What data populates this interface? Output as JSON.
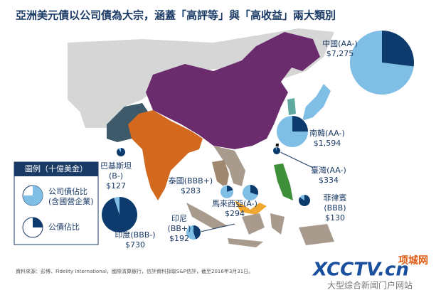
{
  "title": "亞洲美元債以公司債為大宗，涵蓋「高評等」與「高收益」兩大類別",
  "regions": [
    {
      "lines": [
        "中國(AA-)",
        "$7,275"
      ],
      "corp_share": 73
    },
    {
      "lines": [
        "南韓(AA-)",
        "$1,594"
      ],
      "corp_share": 75
    },
    {
      "lines": [
        "臺灣(AA-)",
        "$334"
      ],
      "corp_share": 5
    },
    {
      "lines": [
        "菲律賓",
        "(BBB)",
        "$130"
      ],
      "corp_share": 15
    },
    {
      "lines": [
        "馬來西亞(A-)",
        "$294"
      ],
      "corp_share": 70
    },
    {
      "lines": [
        "泰國(BBB+)",
        "$283"
      ],
      "corp_share": 80
    },
    {
      "lines": [
        "印尼",
        "(BB+)",
        "$192"
      ],
      "corp_share": 55
    },
    {
      "lines": [
        "印度(BBB-)",
        "$730"
      ],
      "corp_share": 5
    },
    {
      "lines": [
        "巴基斯坦",
        "(B-)",
        "$127"
      ],
      "corp_share": 10
    }
  ],
  "legend": {
    "title": "圖例（十億美金）",
    "corp": [
      "公司債佔比",
      "(含國營企業)"
    ],
    "gov": "公債佔比"
  },
  "source": "資料來源：彭博、Fidelity International，國際清算銀行，信評資料採取S&P信評，截至2016年3月31日。",
  "watermark": {
    "logo": "XCCTV.cn",
    "site": "项城网",
    "slogan": "大型综合新闻门户网站"
  }
}
